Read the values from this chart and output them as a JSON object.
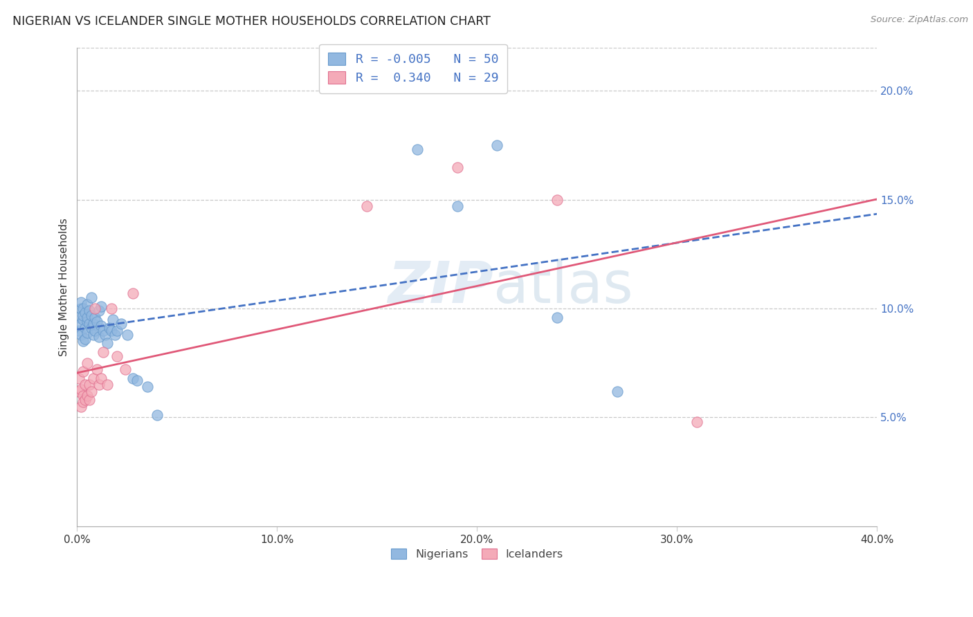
{
  "title": "NIGERIAN VS ICELANDER SINGLE MOTHER HOUSEHOLDS CORRELATION CHART",
  "source": "Source: ZipAtlas.com",
  "ylabel": "Single Mother Households",
  "watermark": "ZIPatlas",
  "nigerian_color": "#92b8e0",
  "nigerian_edge_color": "#6699cc",
  "icelander_color": "#f4aab8",
  "icelander_edge_color": "#e07090",
  "nigerian_line_color": "#4472c4",
  "icelander_line_color": "#e05878",
  "right_tick_color": "#4472c4",
  "xlim": [
    0.0,
    0.4
  ],
  "ylim": [
    0.0,
    0.22
  ],
  "xticks": [
    0.0,
    0.1,
    0.2,
    0.3,
    0.4
  ],
  "yticks": [
    0.05,
    0.1,
    0.15,
    0.2
  ],
  "xtick_labels": [
    "0.0%",
    "10.0%",
    "20.0%",
    "30.0%",
    "40.0%"
  ],
  "ytick_labels": [
    "5.0%",
    "10.0%",
    "15.0%",
    "20.0%"
  ],
  "legend1_text": "R = -0.005   N = 50",
  "legend2_text": "R =  0.340   N = 29",
  "bottom_legend1": "Nigerians",
  "bottom_legend2": "Icelanders",
  "nigerian_x": [
    0.001,
    0.001,
    0.002,
    0.002,
    0.002,
    0.002,
    0.003,
    0.003,
    0.003,
    0.003,
    0.004,
    0.004,
    0.004,
    0.005,
    0.005,
    0.005,
    0.005,
    0.006,
    0.006,
    0.007,
    0.007,
    0.007,
    0.008,
    0.008,
    0.009,
    0.009,
    0.01,
    0.011,
    0.011,
    0.012,
    0.012,
    0.013,
    0.014,
    0.015,
    0.016,
    0.017,
    0.018,
    0.019,
    0.02,
    0.022,
    0.025,
    0.028,
    0.03,
    0.035,
    0.04,
    0.17,
    0.19,
    0.21,
    0.24,
    0.27
  ],
  "nigerian_y": [
    0.09,
    0.096,
    0.093,
    0.1,
    0.103,
    0.088,
    0.095,
    0.1,
    0.097,
    0.085,
    0.091,
    0.098,
    0.086,
    0.094,
    0.102,
    0.089,
    0.096,
    0.093,
    0.099,
    0.091,
    0.097,
    0.105,
    0.093,
    0.088,
    0.096,
    0.09,
    0.094,
    0.099,
    0.087,
    0.092,
    0.101,
    0.09,
    0.088,
    0.084,
    0.091,
    0.09,
    0.095,
    0.088,
    0.09,
    0.093,
    0.088,
    0.068,
    0.067,
    0.064,
    0.051,
    0.173,
    0.147,
    0.175,
    0.096,
    0.062
  ],
  "icelander_x": [
    0.001,
    0.001,
    0.002,
    0.002,
    0.003,
    0.003,
    0.003,
    0.004,
    0.004,
    0.005,
    0.005,
    0.006,
    0.006,
    0.007,
    0.008,
    0.009,
    0.01,
    0.011,
    0.012,
    0.013,
    0.015,
    0.017,
    0.02,
    0.024,
    0.028,
    0.145,
    0.19,
    0.24,
    0.31
  ],
  "icelander_y": [
    0.068,
    0.062,
    0.063,
    0.055,
    0.06,
    0.057,
    0.071,
    0.058,
    0.065,
    0.06,
    0.075,
    0.065,
    0.058,
    0.062,
    0.068,
    0.1,
    0.072,
    0.065,
    0.068,
    0.08,
    0.065,
    0.1,
    0.078,
    0.072,
    0.107,
    0.147,
    0.165,
    0.15,
    0.048
  ]
}
